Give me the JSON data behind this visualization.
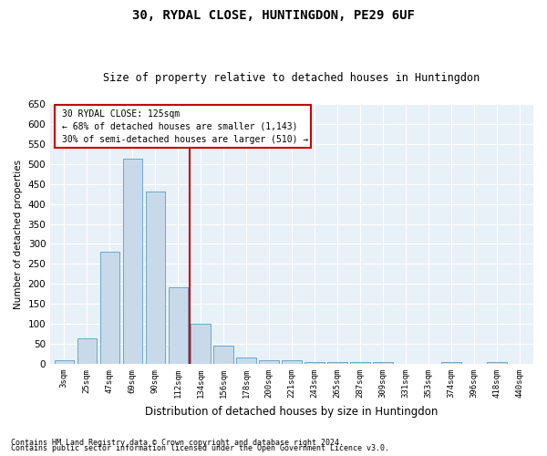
{
  "title": "30, RYDAL CLOSE, HUNTINGDON, PE29 6UF",
  "subtitle": "Size of property relative to detached houses in Huntingdon",
  "xlabel": "Distribution of detached houses by size in Huntingdon",
  "ylabel": "Number of detached properties",
  "categories": [
    "3sqm",
    "25sqm",
    "47sqm",
    "69sqm",
    "90sqm",
    "112sqm",
    "134sqm",
    "156sqm",
    "178sqm",
    "200sqm",
    "221sqm",
    "243sqm",
    "265sqm",
    "287sqm",
    "309sqm",
    "331sqm",
    "353sqm",
    "374sqm",
    "396sqm",
    "418sqm",
    "440sqm"
  ],
  "values": [
    10,
    65,
    280,
    513,
    432,
    192,
    100,
    46,
    15,
    10,
    10,
    4,
    5,
    5,
    4,
    0,
    0,
    4,
    0,
    4,
    0
  ],
  "bar_color": "#c8daea",
  "bar_edge_color": "#5a9ec4",
  "ylim": [
    0,
    650
  ],
  "yticks": [
    0,
    50,
    100,
    150,
    200,
    250,
    300,
    350,
    400,
    450,
    500,
    550,
    600,
    650
  ],
  "vline_x": 5.5,
  "vline_color": "#cc0000",
  "annotation_title": "30 RYDAL CLOSE: 125sqm",
  "annotation_line1": "← 68% of detached houses are smaller (1,143)",
  "annotation_line2": "30% of semi-detached houses are larger (510) →",
  "annotation_box_color": "#cc0000",
  "footer_line1": "Contains HM Land Registry data © Crown copyright and database right 2024.",
  "footer_line2": "Contains public sector information licensed under the Open Government Licence v3.0.",
  "bg_color": "#ffffff",
  "plot_bg_color": "#e8f0f8"
}
